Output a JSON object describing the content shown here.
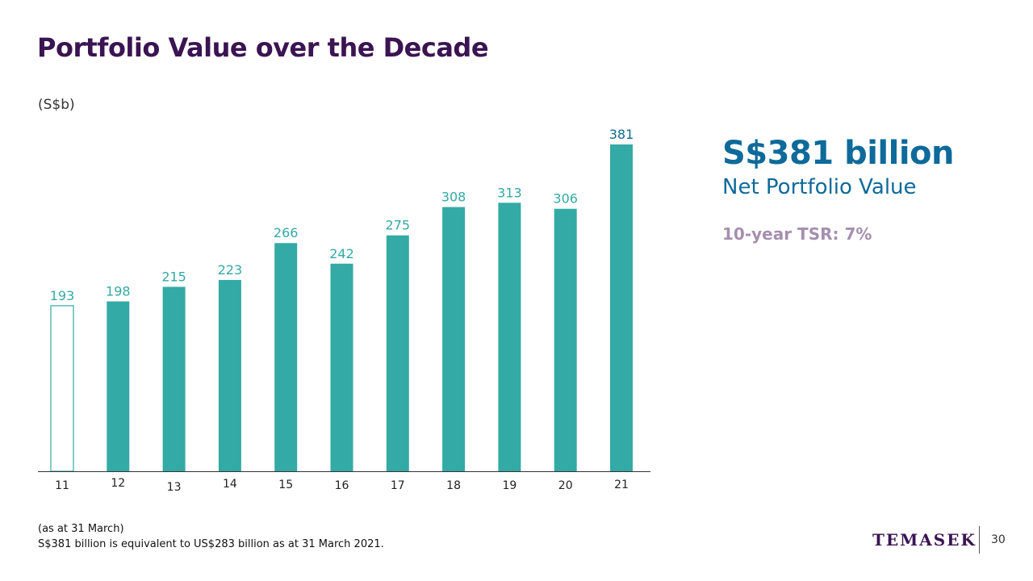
{
  "slide": {
    "title": "Portfolio Value over the Decade",
    "unit": "(S$b)"
  },
  "highlight": {
    "value": "S$381 billion",
    "label": "Net Portfolio Value",
    "tsr": "10-year TSR: 7%",
    "value_color": "#0e6a9a",
    "tsr_color": "#a58fae"
  },
  "footnote": {
    "line1": "(as at 31 March)",
    "line2": "S$381 billion is equivalent to US$283 billion as at 31 March 2021."
  },
  "brand": {
    "logo": "TEMASEK",
    "page_number": "30"
  },
  "chart_data": {
    "type": "bar",
    "categories": [
      "11",
      "12",
      "13",
      "14",
      "15",
      "16",
      "17",
      "18",
      "19",
      "20",
      "21"
    ],
    "values": [
      193,
      198,
      215,
      223,
      266,
      242,
      275,
      308,
      313,
      306,
      381
    ],
    "value_labels": [
      "193",
      "198",
      "215",
      "223",
      "266",
      "242",
      "275",
      "308",
      "313",
      "306",
      "381"
    ],
    "ylabel": "(S$b)",
    "ylim": [
      0,
      381
    ],
    "grid": false,
    "bar_color": "#33aaa5",
    "first_bar_style": "outline",
    "last_label_color": "#0e6a8c"
  }
}
